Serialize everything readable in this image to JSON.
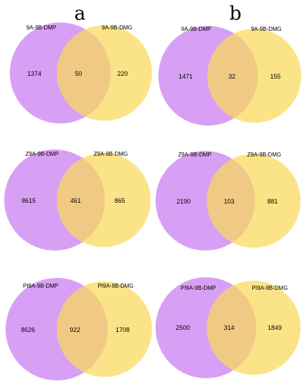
{
  "colors": {
    "left_set": "#c97cf0",
    "right_set": "#f9d95a",
    "background": "#ffffff"
  },
  "panels": [
    {
      "letter": "a",
      "diagrams": [
        {
          "left_label": "9A-9B-DMP",
          "right_label": "9A-9B-DMG",
          "left_only": "1374",
          "overlap": "50",
          "right_only": "220"
        },
        {
          "left_label": "Z9A-9B-DMP",
          "right_label": "Z9A-9B-DMG",
          "left_only": "8615",
          "overlap": "461",
          "right_only": "865"
        },
        {
          "left_label": "PI9A-9B-DMP",
          "right_label": "PI9A-9B-DMG",
          "left_only": "8626",
          "overlap": "922",
          "right_only": "1708"
        }
      ]
    },
    {
      "letter": "b",
      "diagrams": [
        {
          "left_label": "9A-9B-DMP",
          "right_label": "9A-9B-DMG",
          "left_only": "1471",
          "overlap": "32",
          "right_only": "155"
        },
        {
          "left_label": "Z9A-9B-DMP",
          "right_label": "Z9A-9B-DMG",
          "left_only": "2190",
          "overlap": "103",
          "right_only": "881"
        },
        {
          "left_label": "PI9A-9B-DMP",
          "right_label": "PI9A-9B-DMG",
          "left_only": "2500",
          "overlap": "314",
          "right_only": "1849"
        }
      ]
    }
  ]
}
